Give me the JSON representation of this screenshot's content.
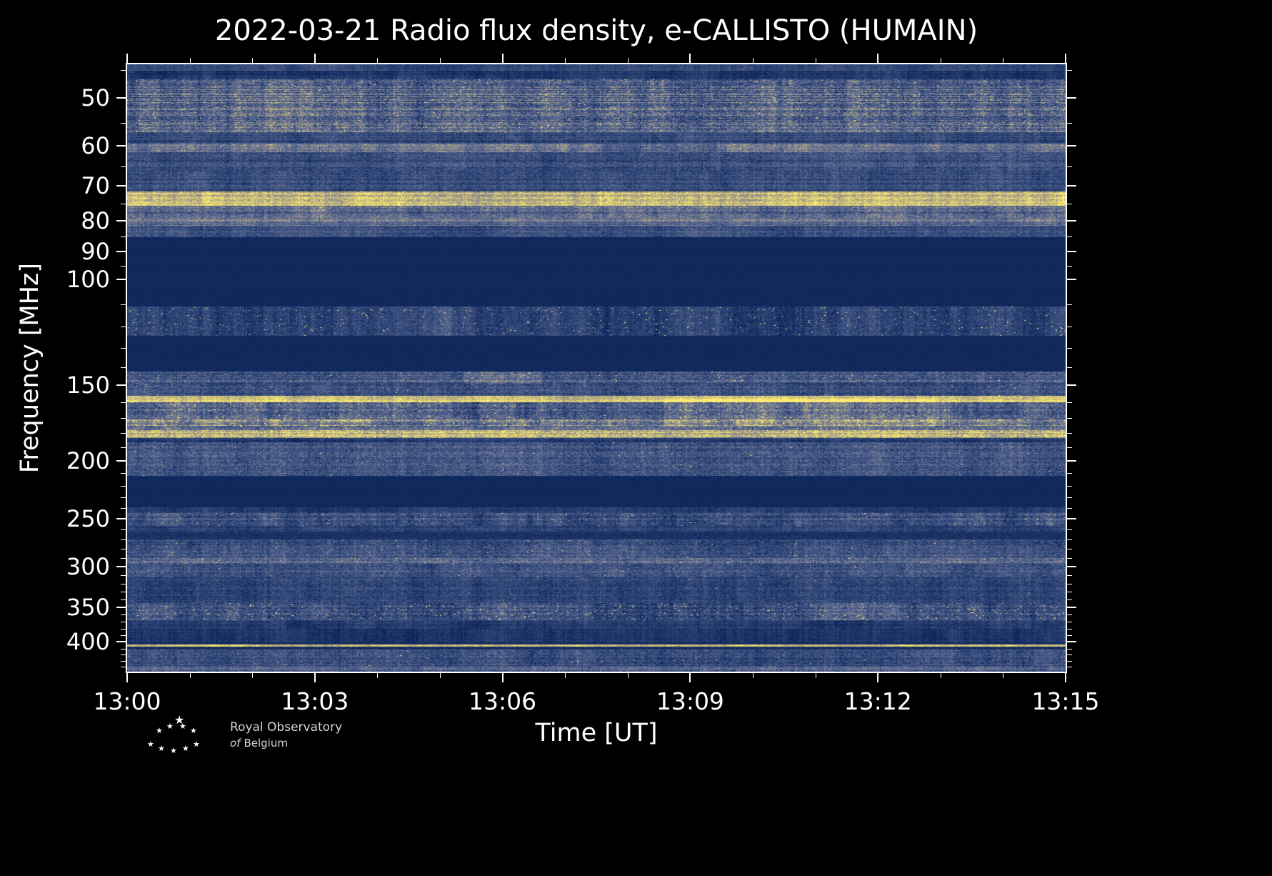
{
  "title": "2022-03-21 Radio flux density, e-CALLISTO (HUMAIN)",
  "axes": {
    "xlabel": "Time [UT]",
    "ylabel": "Frequency [MHz]",
    "x_ticks": [
      {
        "minute": 0,
        "label": "13:00"
      },
      {
        "minute": 3,
        "label": "13:03"
      },
      {
        "minute": 6,
        "label": "13:06"
      },
      {
        "minute": 9,
        "label": "13:09"
      },
      {
        "minute": 12,
        "label": "13:12"
      },
      {
        "minute": 15,
        "label": "13:15"
      }
    ],
    "x_minor_minutes": [
      1,
      2,
      4,
      5,
      7,
      8,
      10,
      11,
      13,
      14
    ],
    "y_ticks": [
      50,
      60,
      70,
      80,
      90,
      100,
      150,
      200,
      250,
      300,
      350,
      400
    ],
    "y_minor": [
      45,
      55,
      65,
      75,
      85,
      95,
      110,
      120,
      130,
      140,
      160,
      170,
      180,
      190,
      210,
      220,
      230,
      240,
      260,
      270,
      280,
      290,
      310,
      320,
      330,
      340,
      360,
      370,
      380,
      390,
      410,
      420,
      430,
      440
    ]
  },
  "chart_data": {
    "type": "heatmap",
    "title": "2022-03-21 Radio flux density, e-CALLISTO (HUMAIN)",
    "xlabel": "Time [UT]",
    "ylabel": "Frequency [MHz]",
    "x_tick_labels": [
      "13:00",
      "13:03",
      "13:06",
      "13:09",
      "13:12",
      "13:15"
    ],
    "t_start_min": 0,
    "t_end_min": 15,
    "f_min": 44,
    "f_max": 448,
    "y_scale": "log",
    "y_axis_inverted": true,
    "colormap_stops": [
      {
        "pos": 0.0,
        "color": "#0a2357"
      },
      {
        "pos": 0.3,
        "color": "#3a5080"
      },
      {
        "pos": 0.55,
        "color": "#6d7697"
      },
      {
        "pos": 0.75,
        "color": "#a9a183"
      },
      {
        "pos": 1.0,
        "color": "#ffec70"
      }
    ],
    "bands": [
      {
        "f_lo": 44,
        "f_hi": 45,
        "base": 0.25,
        "row_var": 0.05,
        "noise": 0.1
      },
      {
        "f_lo": 45,
        "f_hi": 46.5,
        "base": 0.12,
        "row_var": 0.05,
        "noise": 0.08
      },
      {
        "f_lo": 46.5,
        "f_hi": 57,
        "base": 0.45,
        "row_var": 0.17,
        "noise": 0.22,
        "speckle_p": 0.025,
        "speckle_gain": 0.35,
        "slow": 0.3
      },
      {
        "f_lo": 57,
        "f_hi": 59.5,
        "base": 0.26,
        "row_var": 0.08,
        "noise": 0.13
      },
      {
        "f_lo": 59.5,
        "f_hi": 61.5,
        "base": 0.5,
        "row_var": 0.1,
        "noise": 0.17,
        "slow": 0.3
      },
      {
        "f_lo": 61.5,
        "f_hi": 66,
        "base": 0.3,
        "row_var": 0.1,
        "noise": 0.15
      },
      {
        "f_lo": 66,
        "f_hi": 71.5,
        "base": 0.27,
        "row_var": 0.09,
        "noise": 0.14
      },
      {
        "f_lo": 71.5,
        "f_hi": 75.5,
        "base": 0.85,
        "row_var": 0.12,
        "noise": 0.13,
        "slow": 0.2
      },
      {
        "f_lo": 75.5,
        "f_hi": 79,
        "base": 0.45,
        "row_var": 0.14,
        "noise": 0.18,
        "slow": 0.25
      },
      {
        "f_lo": 79,
        "f_hi": 81.5,
        "base": 0.5,
        "row_var": 0.12,
        "noise": 0.16
      },
      {
        "f_lo": 81.5,
        "f_hi": 85,
        "base": 0.3,
        "row_var": 0.1,
        "noise": 0.14
      },
      {
        "f_lo": 85,
        "f_hi": 111,
        "base": 0.045,
        "row_var": 0.008,
        "noise": 0.015
      },
      {
        "f_lo": 111,
        "f_hi": 124,
        "base": 0.22,
        "row_var": 0.05,
        "noise": 0.13,
        "speckle_p": 0.02,
        "speckle_gain": 0.55,
        "slow": 0.3
      },
      {
        "f_lo": 124,
        "f_hi": 142,
        "base": 0.045,
        "row_var": 0.008,
        "noise": 0.015
      },
      {
        "f_lo": 142,
        "f_hi": 148,
        "base": 0.36,
        "row_var": 0.11,
        "noise": 0.18,
        "speckle_p": 0.02,
        "speckle_gain": 0.35
      },
      {
        "f_lo": 148,
        "f_hi": 156,
        "base": 0.3,
        "row_var": 0.1,
        "noise": 0.16,
        "speckle_p": 0.008
      },
      {
        "f_lo": 156,
        "f_hi": 160,
        "base": 0.9,
        "row_var": 0.08,
        "noise": 0.1
      },
      {
        "f_lo": 160,
        "f_hi": 170,
        "base": 0.38,
        "row_var": 0.11,
        "noise": 0.19,
        "speckle_p": 0.025,
        "speckle_gain": 0.4,
        "slow": 0.35
      },
      {
        "f_lo": 170,
        "f_hi": 175,
        "base": 0.55,
        "row_var": 0.14,
        "noise": 0.2,
        "speckle_p": 0.04,
        "speckle_gain": 0.35,
        "slow": 0.35
      },
      {
        "f_lo": 175,
        "f_hi": 178,
        "base": 0.45,
        "row_var": 0.12,
        "noise": 0.19,
        "speckle_p": 0.02,
        "speckle_gain": 0.35
      },
      {
        "f_lo": 178,
        "f_hi": 183,
        "base": 0.78,
        "row_var": 0.15,
        "noise": 0.17,
        "speckle_p": 0.02,
        "speckle_gain": 0.25,
        "slow": 0.25
      },
      {
        "f_lo": 183,
        "f_hi": 186,
        "base": 0.14,
        "row_var": 0.04,
        "noise": 0.08
      },
      {
        "f_lo": 186,
        "f_hi": 212,
        "base": 0.33,
        "row_var": 0.08,
        "noise": 0.17,
        "speckle_p": 0.006,
        "speckle_gain": 0.35
      },
      {
        "f_lo": 212,
        "f_hi": 239,
        "base": 0.045,
        "row_var": 0.008,
        "noise": 0.015
      },
      {
        "f_lo": 239,
        "f_hi": 244,
        "base": 0.18,
        "row_var": 0.05,
        "noise": 0.1
      },
      {
        "f_lo": 244,
        "f_hi": 256,
        "base": 0.3,
        "row_var": 0.08,
        "noise": 0.16,
        "speckle_p": 0.015,
        "speckle_gain": 0.4,
        "slow": 0.3
      },
      {
        "f_lo": 256,
        "f_hi": 262,
        "base": 0.2,
        "row_var": 0.05,
        "noise": 0.11
      },
      {
        "f_lo": 262,
        "f_hi": 270,
        "base": 0.1,
        "row_var": 0.03,
        "noise": 0.06
      },
      {
        "f_lo": 270,
        "f_hi": 290,
        "base": 0.3,
        "row_var": 0.08,
        "noise": 0.16,
        "speckle_p": 0.01,
        "speckle_gain": 0.4
      },
      {
        "f_lo": 290,
        "f_hi": 296,
        "base": 0.42,
        "row_var": 0.1,
        "noise": 0.17,
        "speckle_p": 0.015,
        "speckle_gain": 0.35
      },
      {
        "f_lo": 296,
        "f_hi": 312,
        "base": 0.3,
        "row_var": 0.08,
        "noise": 0.16,
        "speckle_p": 0.008,
        "speckle_gain": 0.35
      },
      {
        "f_lo": 312,
        "f_hi": 344,
        "base": 0.22,
        "row_var": 0.07,
        "noise": 0.13,
        "speckle_p": 0.004,
        "speckle_gain": 0.3
      },
      {
        "f_lo": 344,
        "f_hi": 368,
        "base": 0.32,
        "row_var": 0.09,
        "noise": 0.17,
        "speckle_p": 0.035,
        "speckle_gain": 0.5,
        "slow": 0.3
      },
      {
        "f_lo": 368,
        "f_hi": 380,
        "base": 0.17,
        "row_var": 0.05,
        "noise": 0.1
      },
      {
        "f_lo": 380,
        "f_hi": 400,
        "base": 0.12,
        "row_var": 0.04,
        "noise": 0.08
      },
      {
        "f_lo": 400,
        "f_hi": 403,
        "base": 0.06,
        "row_var": 0.02,
        "noise": 0.04
      },
      {
        "f_lo": 403,
        "f_hi": 407,
        "base": 0.85,
        "row_var": 0.08,
        "noise": 0.1
      },
      {
        "f_lo": 407,
        "f_hi": 411,
        "base": 0.1,
        "row_var": 0.03,
        "noise": 0.06
      },
      {
        "f_lo": 411,
        "f_hi": 438,
        "base": 0.3,
        "row_var": 0.08,
        "noise": 0.16,
        "speckle_p": 0.008,
        "speckle_gain": 0.35
      },
      {
        "f_lo": 438,
        "f_hi": 448,
        "base": 0.4,
        "row_var": 0.1,
        "noise": 0.15
      }
    ],
    "bright_patches": [
      {
        "f_lo": 158,
        "f_hi": 176,
        "t_lo": 8.6,
        "t_hi": 12.9,
        "gain": 0.16
      },
      {
        "f_lo": 160,
        "f_hi": 172,
        "t_lo": 3.4,
        "t_hi": 5.2,
        "gain": 0.14
      },
      {
        "f_lo": 143,
        "f_hi": 149,
        "t_lo": 5.4,
        "t_hi": 6.6,
        "gain": 0.2
      },
      {
        "f_lo": 46,
        "f_hi": 57,
        "t_lo": 0.2,
        "t_hi": 6.0,
        "gain": 0.06
      }
    ]
  },
  "logo": {
    "line1": "Royal Observatory",
    "line2_italic": "of",
    "line2_rest": "Belgium"
  },
  "icons": {
    "star": "★"
  },
  "colors": {
    "page_background": "#000000",
    "frame": "#ffffff",
    "text": "#ffffff",
    "blank_band": "#0d2a5c",
    "bright_line": "#ffec70"
  }
}
